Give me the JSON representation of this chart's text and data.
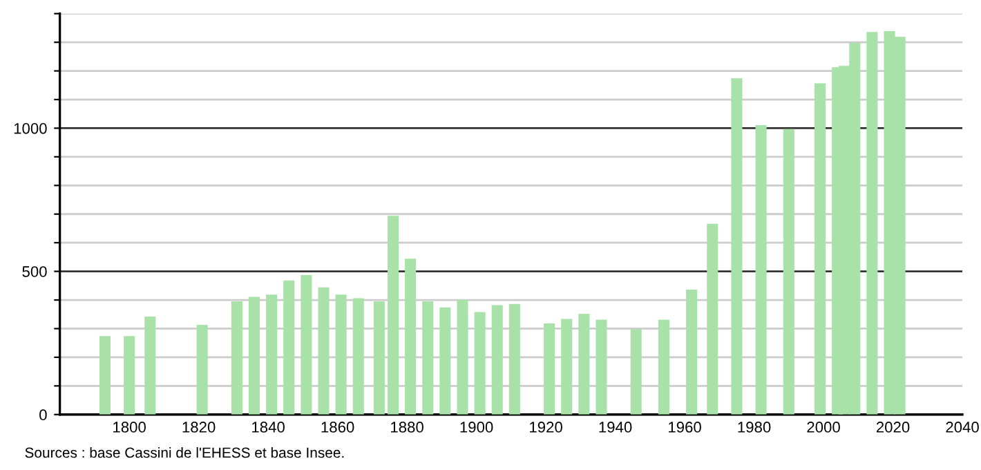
{
  "chart_data": {
    "type": "bar",
    "color": "#a8e2a8",
    "x": [
      1793,
      1800,
      1806,
      1821,
      1831,
      1836,
      1841,
      1846,
      1851,
      1856,
      1861,
      1866,
      1872,
      1876,
      1881,
      1886,
      1891,
      1896,
      1901,
      1906,
      1911,
      1921,
      1926,
      1931,
      1936,
      1946,
      1954,
      1962,
      1968,
      1975,
      1982,
      1990,
      1999,
      2004,
      2006,
      2009,
      2014,
      2019,
      2022
    ],
    "values": [
      274,
      274,
      342,
      313,
      395,
      411,
      419,
      468,
      487,
      444,
      419,
      406,
      395,
      694,
      544,
      395,
      374,
      400,
      358,
      382,
      386,
      318,
      334,
      352,
      331,
      298,
      331,
      436,
      666,
      1174,
      1011,
      997,
      1157,
      1213,
      1218,
      1298,
      1336,
      1339,
      1319
    ],
    "xlim": [
      1780,
      2040
    ],
    "xticks": [
      1800,
      1820,
      1840,
      1860,
      1880,
      1900,
      1920,
      1940,
      1960,
      1980,
      2000,
      2020,
      2040
    ],
    "ylim": [
      0,
      1400
    ],
    "yticks": [
      0,
      {
        "value": 100,
        "label": null
      },
      {
        "value": 200,
        "label": null
      },
      {
        "value": 300,
        "label": null
      },
      {
        "value": 400,
        "label": null
      },
      500,
      {
        "value": 600,
        "label": null
      },
      {
        "value": 700,
        "label": null
      },
      {
        "value": 800,
        "label": null
      },
      {
        "value": 900,
        "label": null
      },
      1000,
      {
        "value": 1100,
        "label": null
      },
      {
        "value": 1200,
        "label": null
      },
      {
        "value": 1300,
        "label": null
      },
      {
        "value": 1400,
        "label": null
      }
    ],
    "grid": "y",
    "annotations": [
      "Sources : base Cassini de l'EHESS et base Insee."
    ]
  }
}
